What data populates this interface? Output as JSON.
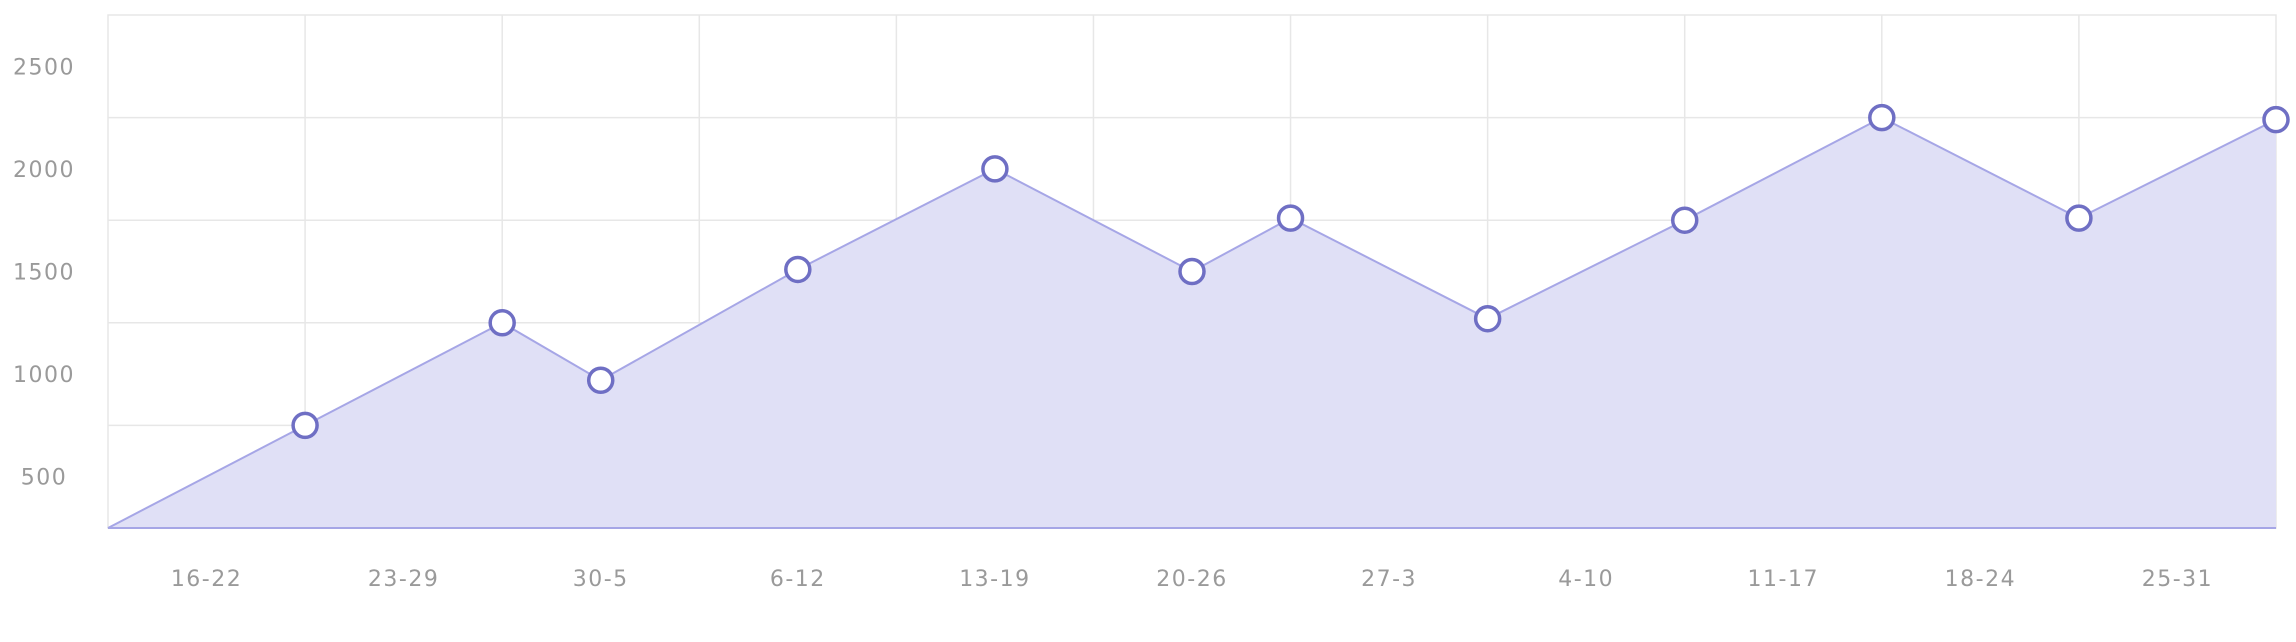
{
  "chart_data": {
    "type": "area",
    "title": "",
    "xlabel": "",
    "ylabel": "",
    "x_tick_labels": [
      "16-22",
      "23-29",
      "30-5",
      "6-12",
      "13-19",
      "20-26",
      "27-3",
      "4-10",
      "11-17",
      "18-24",
      "25-31"
    ],
    "y_tick_labels": [
      "500",
      "1000",
      "1500",
      "2000",
      "2500"
    ],
    "y_ticks": [
      500,
      1000,
      1500,
      2000,
      2500
    ],
    "ylim": [
      250,
      2750
    ],
    "xlim": [
      0,
      11
    ],
    "grid": true,
    "legend": "none",
    "series": [
      {
        "x": [
          0,
          1,
          2,
          2.5,
          3.5,
          4.5,
          5.5,
          6,
          7,
          8,
          9,
          10,
          11
        ],
        "y": [
          250,
          750,
          1250,
          970,
          1510,
          2000,
          1500,
          1760,
          1270,
          1750,
          2250,
          1760,
          2240
        ]
      }
    ],
    "colors": {
      "line": "#a6a6e6",
      "fill": "#e0e0f6",
      "marker_stroke": "#6f6fc4",
      "marker_fill": "#ffffff",
      "grid": "#e7e7e7"
    }
  }
}
